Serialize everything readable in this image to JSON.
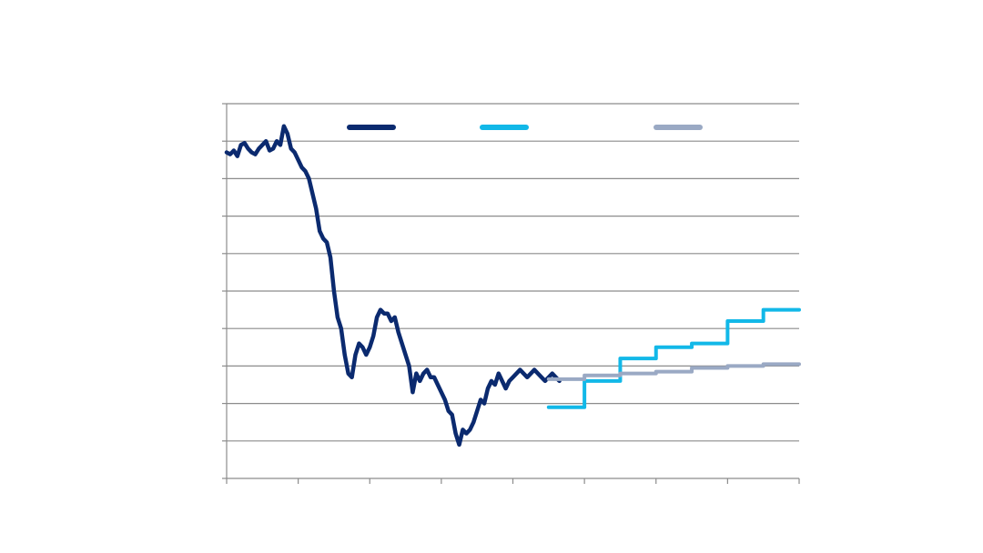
{
  "chart_data": {
    "type": "line",
    "title": "",
    "xlabel": "",
    "ylabel": "",
    "xlim": [
      0,
      8
    ],
    "ylim": [
      0,
      10
    ],
    "grid": {
      "horizontal": true,
      "vertical": false
    },
    "legend": {
      "placement": "top"
    },
    "series": [
      {
        "key": "history",
        "color": "#0b2a6f",
        "step": false,
        "x": [
          0,
          0.05,
          0.1,
          0.15,
          0.2,
          0.25,
          0.3,
          0.35,
          0.4,
          0.45,
          0.5,
          0.55,
          0.6,
          0.65,
          0.7,
          0.75,
          0.8,
          0.85,
          0.9,
          0.95,
          1.0,
          1.05,
          1.1,
          1.15,
          1.2,
          1.25,
          1.3,
          1.35,
          1.4,
          1.45,
          1.5,
          1.55,
          1.6,
          1.65,
          1.7,
          1.75,
          1.8,
          1.85,
          1.9,
          1.95,
          2.0,
          2.05,
          2.1,
          2.15,
          2.2,
          2.25,
          2.3,
          2.35,
          2.4,
          2.45,
          2.5,
          2.55,
          2.6,
          2.65,
          2.7,
          2.75,
          2.8,
          2.85,
          2.9,
          2.95,
          3.0,
          3.05,
          3.1,
          3.15,
          3.2,
          3.25,
          3.3,
          3.35,
          3.4,
          3.45,
          3.5,
          3.55,
          3.6,
          3.65,
          3.7,
          3.75,
          3.8,
          3.85,
          3.9,
          3.95,
          4.0,
          4.05,
          4.1,
          4.15,
          4.2,
          4.25,
          4.3,
          4.35,
          4.4,
          4.45,
          4.5,
          4.55,
          4.6,
          4.65
        ],
        "y": [
          8.7,
          8.65,
          8.75,
          8.6,
          8.9,
          8.95,
          8.8,
          8.7,
          8.65,
          8.8,
          8.9,
          9.0,
          8.75,
          8.8,
          9.0,
          8.9,
          9.4,
          9.2,
          8.8,
          8.7,
          8.5,
          8.3,
          8.2,
          8.0,
          7.6,
          7.2,
          6.6,
          6.4,
          6.3,
          5.9,
          5.0,
          4.3,
          4.0,
          3.3,
          2.8,
          2.7,
          3.3,
          3.6,
          3.5,
          3.3,
          3.5,
          3.8,
          4.3,
          4.5,
          4.4,
          4.4,
          4.2,
          4.3,
          3.9,
          3.6,
          3.3,
          3.0,
          2.3,
          2.8,
          2.6,
          2.8,
          2.9,
          2.7,
          2.7,
          2.5,
          2.3,
          2.1,
          1.8,
          1.7,
          1.2,
          0.9,
          1.3,
          1.2,
          1.3,
          1.5,
          1.8,
          2.1,
          2.0,
          2.4,
          2.6,
          2.5,
          2.8,
          2.6,
          2.4,
          2.6,
          2.7,
          2.8,
          2.9,
          2.8,
          2.7,
          2.8,
          2.9,
          2.8,
          2.7,
          2.6,
          2.7,
          2.8,
          2.7,
          2.6
        ]
      },
      {
        "key": "forecast-high",
        "color": "#12b8e8",
        "step": true,
        "x": [
          4.5,
          5.0,
          5.0,
          5.5,
          5.5,
          6.0,
          6.0,
          6.5,
          6.5,
          7.0,
          7.0,
          7.5,
          7.5,
          8.0
        ],
        "y": [
          1.9,
          1.9,
          2.6,
          2.6,
          3.2,
          3.2,
          3.5,
          3.5,
          3.6,
          3.6,
          4.2,
          4.2,
          4.5,
          4.5
        ]
      },
      {
        "key": "forecast-low",
        "color": "#9aa9c4",
        "step": true,
        "x": [
          4.5,
          5.0,
          5.0,
          5.5,
          5.5,
          6.0,
          6.0,
          6.5,
          6.5,
          7.0,
          7.0,
          7.5,
          7.5,
          8.0
        ],
        "y": [
          2.65,
          2.65,
          2.75,
          2.75,
          2.8,
          2.8,
          2.85,
          2.85,
          2.95,
          2.95,
          3.0,
          3.0,
          3.05,
          3.05
        ]
      }
    ]
  }
}
